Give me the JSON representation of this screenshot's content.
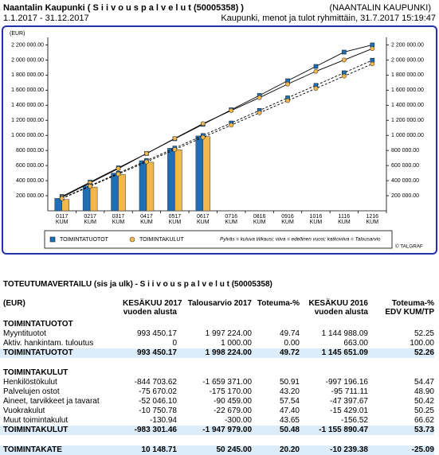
{
  "header": {
    "title": "Naantalin Kaupunki ( S i i v o u s p a l v e l u t (50005358) )",
    "period": "1.1.2017 - 31.12.2017",
    "organization": "(NAANTALIN KAUPUNKI)",
    "report": "Kaupunki, menot ja tulot ryhmittäin, 31.7.2017 15:19:47"
  },
  "chart_data": {
    "type": "bar",
    "y_label": "(EUR)",
    "categories": [
      "0117",
      "0217",
      "0317",
      "0417",
      "0517",
      "0617",
      "0716",
      "0816",
      "0916",
      "1016",
      "1116",
      "1216"
    ],
    "category_unit": "KUM",
    "series": [
      {
        "name": "TOIMINTATUOTOT",
        "color": "#1f6fb5",
        "marker": "square",
        "values": [
          165000,
          330000,
          500000,
          665000,
          830000,
          993000,
          null,
          null,
          null,
          null,
          null,
          null
        ],
        "previous_year": [
          190000,
          380000,
          570000,
          760000,
          955000,
          1146000,
          1340000,
          1530000,
          1725000,
          1915000,
          2105000,
          2200000
        ],
        "budget": [
          166000,
          333000,
          499000,
          666000,
          832000,
          999000,
          1165000,
          1331000,
          1498000,
          1664000,
          1831000,
          1997000
        ]
      },
      {
        "name": "TOIMINTAKULUT",
        "color": "#f2b84b",
        "marker": "circle",
        "values": [
          150000,
          315000,
          480000,
          645000,
          810000,
          983000,
          null,
          null,
          null,
          null,
          null,
          null
        ],
        "previous_year": [
          180000,
          370000,
          560000,
          760000,
          960000,
          1156000,
          1330000,
          1500000,
          1680000,
          1850000,
          2000000,
          2150000
        ],
        "budget": [
          162000,
          325000,
          487000,
          649000,
          812000,
          974000,
          1136000,
          1299000,
          1461000,
          1623000,
          1786000,
          1948000
        ]
      }
    ],
    "ylim": [
      0,
      2300000
    ],
    "yticks": [
      {
        "value": 200000,
        "label": "200 000.00"
      },
      {
        "value": 400000,
        "label": "400 000.00"
      },
      {
        "value": 600000,
        "label": "600 000.00"
      },
      {
        "value": 800000,
        "label": "800 000.00"
      },
      {
        "value": 1000000,
        "label": "1 000 000.00"
      },
      {
        "value": 1200000,
        "label": "1 200 000.00"
      },
      {
        "value": 1400000,
        "label": "1 400 000.00"
      },
      {
        "value": 1600000,
        "label": "1 600 000.00"
      },
      {
        "value": 1800000,
        "label": "1 800 000.00"
      },
      {
        "value": 2000000,
        "label": "2 000 000.00"
      },
      {
        "value": 2200000,
        "label": "2 200 000.00"
      }
    ],
    "note": "Pylväs = kuluva tilikausi; viiva = edellinen vuosi; katkoviiva = Talousarvio",
    "credit": "© TALGRAF"
  },
  "table": {
    "title": "TOTEUTUMAVERTAILU (sis ja ulk) - S i i v o u s p a l v e l u t (50005358)",
    "header": [
      [
        "(EUR)"
      ],
      [
        "KESÄKUU 2017",
        "vuoden alusta"
      ],
      [
        "Talousarvio 2017"
      ],
      [
        "Toteuma-%"
      ],
      [
        "KESÄKUU 2016",
        "vuoden alusta"
      ],
      [
        "Toteuma-%",
        "EDV KUM/TP"
      ]
    ],
    "sections": [
      {
        "heading": "TOIMINTATUOTOT",
        "rows": [
          [
            "Myyntituotot",
            "993 450.17",
            "1 997 224.00",
            "49.74",
            "1 144 988.09",
            "52.25"
          ],
          [
            "Aktiv. hankintam. tuloutus",
            "0",
            "1 000.00",
            "0.00",
            "663.00",
            "100.00"
          ]
        ],
        "total": [
          "TOIMINTATUOTOT",
          "993 450.17",
          "1 998 224.00",
          "49.72",
          "1 145 651.09",
          "52.26"
        ]
      },
      {
        "heading": "TOIMINTAKULUT",
        "rows": [
          [
            "Henkilöstökulut",
            "-844 703.62",
            "-1 659 371.00",
            "50.91",
            "-997 196.16",
            "54.47"
          ],
          [
            "Palvelujen ostot",
            "-75 670.02",
            "-175 170.00",
            "43.20",
            "-95 711.11",
            "48.90"
          ],
          [
            "Aineet, tarvikkeet ja tavarat",
            "-52 046.10",
            "-90 459.00",
            "57.54",
            "-47 397.67",
            "50.42"
          ],
          [
            "Vuokrakulut",
            "-10 750.78",
            "-22 679.00",
            "47.40",
            "-15 429.01",
            "50.25"
          ],
          [
            "Muut toimintakulut",
            "-130.94",
            "-300.00",
            "43.65",
            "-156.52",
            "66.62"
          ]
        ],
        "total": [
          "TOIMINTAKULUT",
          "-983 301.46",
          "-1 947 979.00",
          "50.48",
          "-1 155 890.47",
          "53.73"
        ]
      }
    ],
    "final": [
      "TOIMINTAKATE",
      "10 148.71",
      "50 245.00",
      "20.20",
      "-10 239.38",
      "-25.09"
    ]
  }
}
